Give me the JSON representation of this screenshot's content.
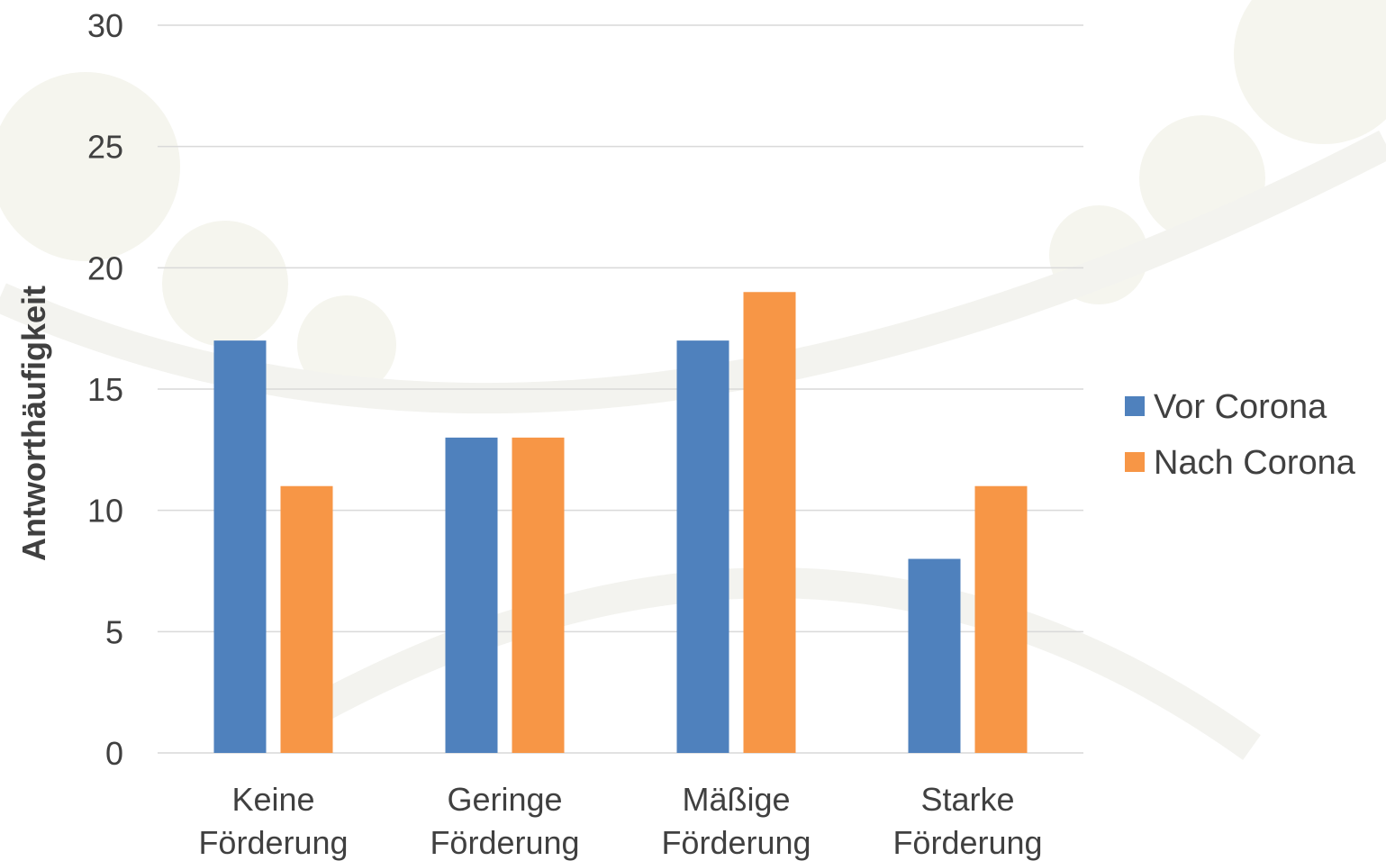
{
  "chart_data": {
    "type": "bar",
    "title": "",
    "xlabel": "",
    "ylabel": "Antworthäufigkeit",
    "ylim": [
      0,
      30
    ],
    "yticks": [
      0,
      5,
      10,
      15,
      20,
      25,
      30
    ],
    "grid": true,
    "legend_position": "right",
    "categories": [
      [
        "Keine",
        "Förderung"
      ],
      [
        "Geringe",
        "Förderung"
      ],
      [
        "Mäßige",
        "Förderung"
      ],
      [
        "Starke",
        "Förderung"
      ]
    ],
    "series": [
      {
        "name": "Vor Corona",
        "color": "#4f81bd",
        "values": [
          17,
          13,
          17,
          8
        ]
      },
      {
        "name": "Nach Corona",
        "color": "#f79646",
        "values": [
          11,
          13,
          19,
          11
        ]
      }
    ]
  }
}
